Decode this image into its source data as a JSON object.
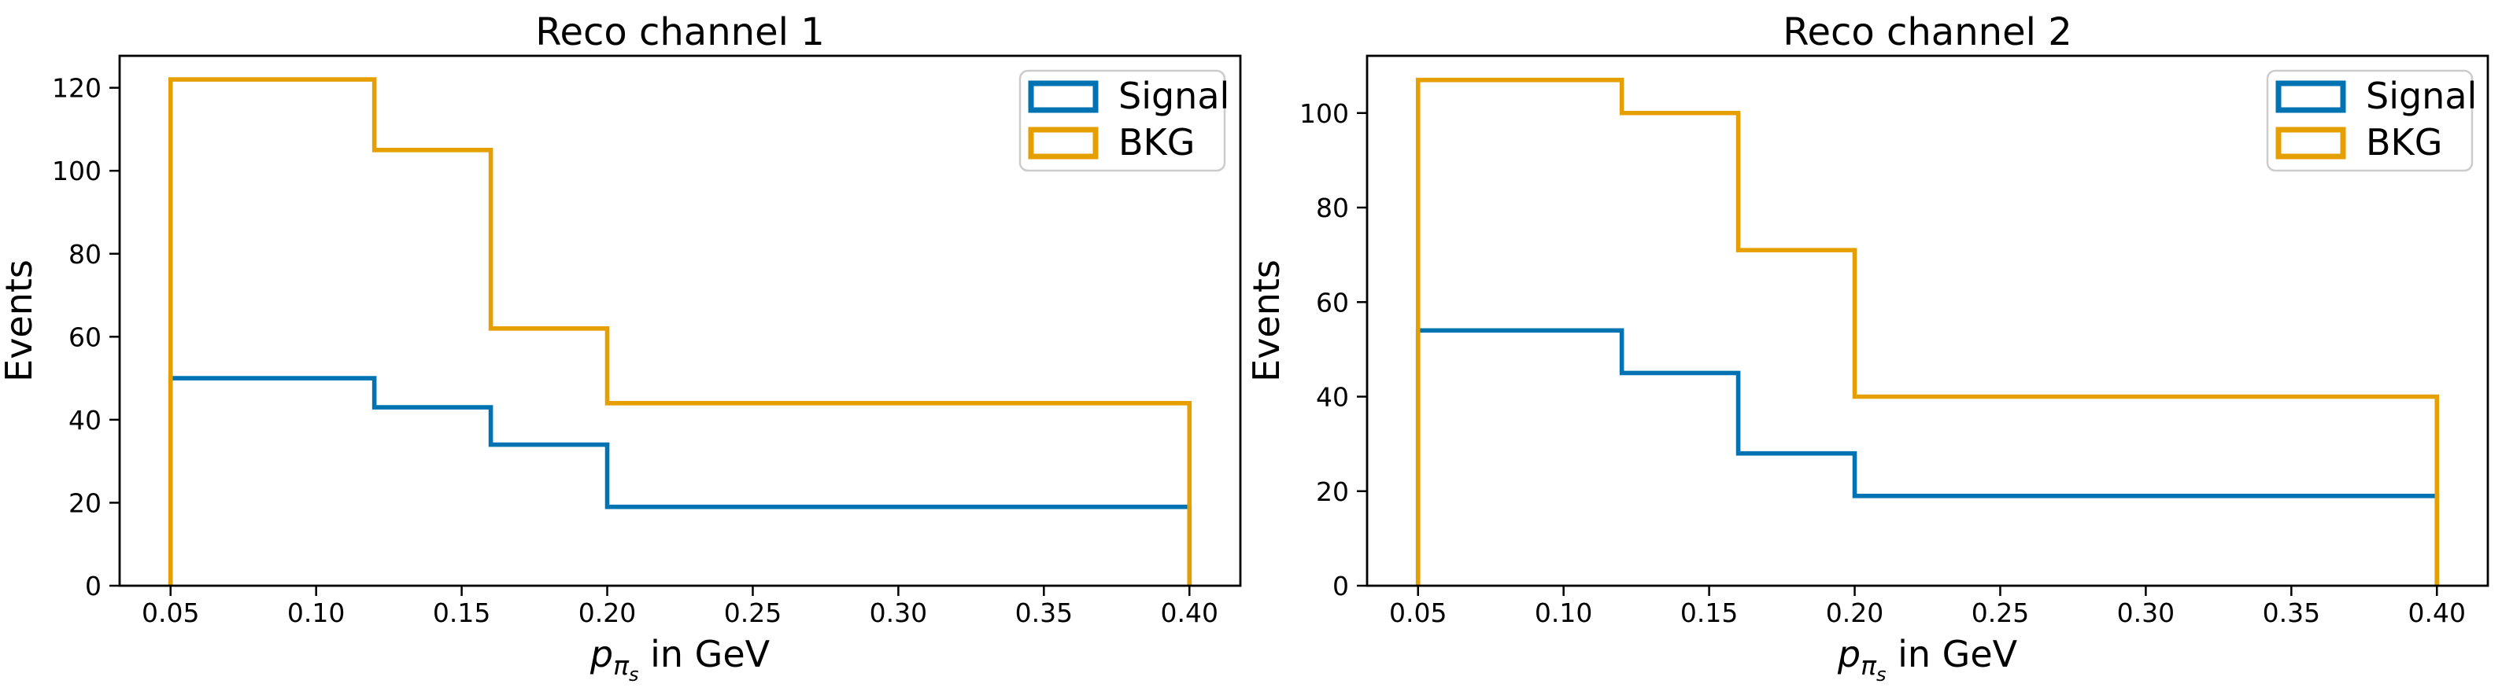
{
  "figure": {
    "background": "#FFFFFF"
  },
  "colors": {
    "signal": "#0173B2",
    "bkg": "#E69F00",
    "axes": "#000000",
    "legend_border": "#CCCCCC"
  },
  "legend": {
    "position": "upper right",
    "items": [
      {
        "label": "Signal",
        "series": "signal",
        "color": "#0173B2"
      },
      {
        "label": "BKG",
        "series": "bkg",
        "color": "#E69F00"
      }
    ]
  },
  "xlabel_parts": {
    "momentum_symbol": "p",
    "pion_subscript": "π",
    "slow_sub_subscript": "s",
    "unit_suffix": " in GeV"
  },
  "chart_data": [
    {
      "type": "step-histogram",
      "title": "Reco channel 1",
      "ylabel": "Events",
      "xlabel": "p_{π_s} in GeV",
      "grid": false,
      "bin_edges": [
        0.05,
        0.12,
        0.16,
        0.2,
        0.4
      ],
      "series": [
        {
          "name": "Signal",
          "color": "#0173B2",
          "values": [
            50,
            43,
            34,
            19
          ]
        },
        {
          "name": "BKG",
          "color": "#E69F00",
          "values": [
            122,
            105,
            62,
            44
          ]
        }
      ],
      "xlim": [
        0.0325,
        0.4175
      ],
      "ylim": [
        0,
        127.7
      ],
      "xticks": [
        0.05,
        0.1,
        0.15,
        0.2,
        0.25,
        0.3,
        0.35,
        0.4
      ],
      "xtick_labels": [
        "0.05",
        "0.10",
        "0.15",
        "0.20",
        "0.25",
        "0.30",
        "0.35",
        "0.40"
      ],
      "yticks": [
        0,
        20,
        40,
        60,
        80,
        100,
        120
      ],
      "ytick_labels": [
        "0",
        "20",
        "40",
        "60",
        "80",
        "100",
        "120"
      ]
    },
    {
      "type": "step-histogram",
      "title": "Reco channel 2",
      "ylabel": "Events",
      "xlabel": "p_{π_s} in GeV",
      "grid": false,
      "bin_edges": [
        0.05,
        0.12,
        0.16,
        0.2,
        0.4
      ],
      "series": [
        {
          "name": "Signal",
          "color": "#0173B2",
          "values": [
            54,
            45,
            28,
            19
          ]
        },
        {
          "name": "BKG",
          "color": "#E69F00",
          "values": [
            107,
            100,
            71,
            40
          ]
        }
      ],
      "xlim": [
        0.0325,
        0.4175
      ],
      "ylim": [
        0,
        112.1
      ],
      "xticks": [
        0.05,
        0.1,
        0.15,
        0.2,
        0.25,
        0.3,
        0.35,
        0.4
      ],
      "xtick_labels": [
        "0.05",
        "0.10",
        "0.15",
        "0.20",
        "0.25",
        "0.30",
        "0.35",
        "0.40"
      ],
      "yticks": [
        0,
        20,
        40,
        60,
        80,
        100
      ],
      "ytick_labels": [
        "0",
        "20",
        "40",
        "60",
        "80",
        "100"
      ]
    }
  ]
}
